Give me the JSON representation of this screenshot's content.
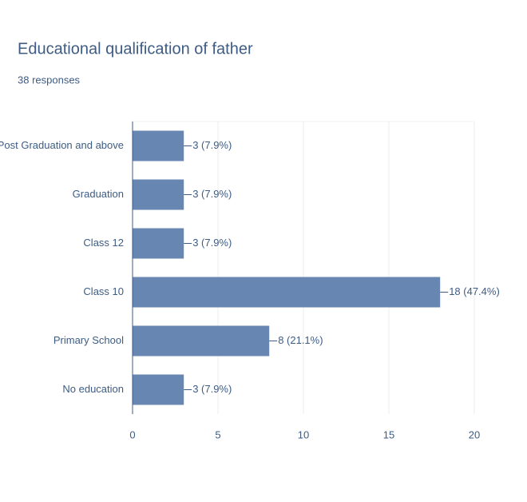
{
  "chart_data": {
    "type": "bar",
    "orientation": "horizontal",
    "title": "Educational qualification of father",
    "subtitle": "38 responses",
    "categories": [
      "Post Graduation and above",
      "Graduation",
      "Class 12",
      "Class 10",
      "Primary School",
      "No education"
    ],
    "values": [
      3,
      3,
      3,
      18,
      8,
      3
    ],
    "value_labels": [
      "3 (7.9%)",
      "3 (7.9%)",
      "3 (7.9%)",
      "18 (47.4%)",
      "8 (21.1%)",
      "3 (7.9%)"
    ],
    "color": "#6886b2",
    "xlim": [
      0,
      20
    ],
    "xticks": [
      0,
      5,
      10,
      15,
      20
    ],
    "grid": true
  }
}
